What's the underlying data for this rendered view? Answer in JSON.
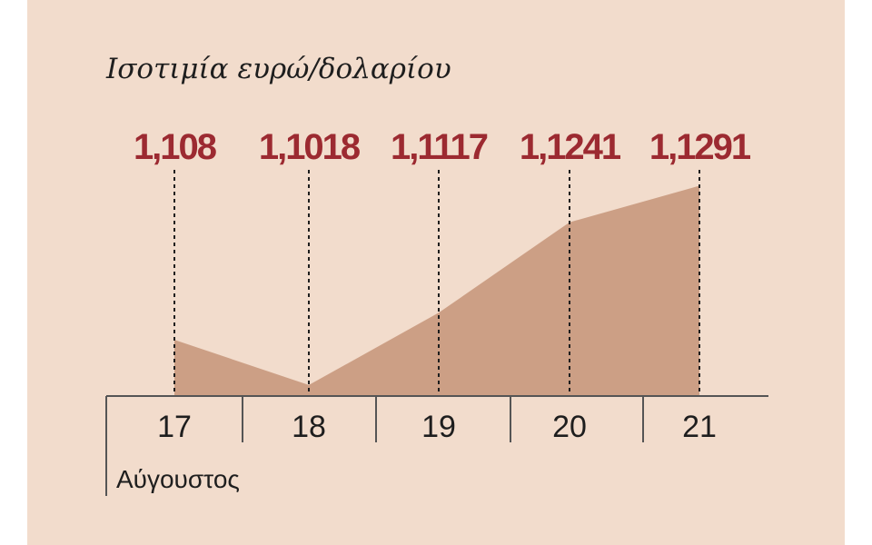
{
  "colors": {
    "background": "#f2dccc",
    "area_fill": "#cc9f85",
    "value_text": "#9c2a31",
    "axis": "#555555",
    "text": "#1e1e1e"
  },
  "chart_data": {
    "type": "area",
    "title": "Ισοτιμία ευρώ/δολαρίου",
    "xlabel": "Αύγουστος",
    "ylabel": "",
    "grid": false,
    "x": [
      "17",
      "18",
      "19",
      "20",
      "21"
    ],
    "values": [
      1.108,
      1.1018,
      1.1117,
      1.1241,
      1.1291
    ],
    "data_labels": [
      "1,108",
      "1,1018",
      "1,1117",
      "1,1241",
      "1,1291"
    ],
    "ylim": [
      1.1003,
      1.1304
    ]
  }
}
